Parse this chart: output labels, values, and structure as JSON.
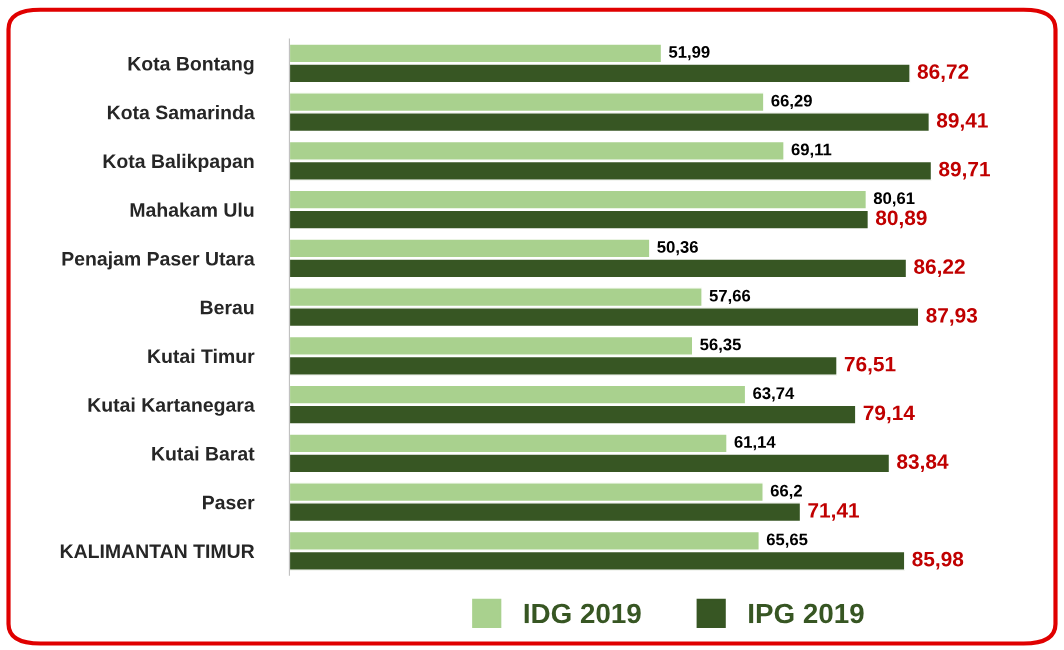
{
  "chart_data": {
    "type": "bar",
    "orientation": "horizontal",
    "categories": [
      "Kota Bontang",
      "Kota Samarinda",
      "Kota Balikpapan",
      "Mahakam Ulu",
      "Penajam Paser Utara",
      "Berau",
      "Kutai Timur",
      "Kutai Kartanegara",
      "Kutai Barat",
      "Paser",
      "KALIMANTAN TIMUR"
    ],
    "series": [
      {
        "name": "IDG 2019",
        "color": "#a9d18e",
        "values": [
          51.99,
          66.29,
          69.11,
          80.61,
          50.36,
          57.66,
          56.35,
          63.74,
          61.14,
          66.2,
          65.65
        ],
        "value_labels": [
          "51,99",
          "66,29",
          "69,11",
          "80,61",
          "50,36",
          "57,66",
          "56,35",
          "63,74",
          "61,14",
          "66,2",
          "65,65"
        ]
      },
      {
        "name": "IPG 2019",
        "color": "#375623",
        "values": [
          86.72,
          89.41,
          89.71,
          80.89,
          86.22,
          87.93,
          76.51,
          79.14,
          83.84,
          71.41,
          85.98
        ],
        "value_labels": [
          "86,72",
          "89,41",
          "89,71",
          "80,89",
          "86,22",
          "87,93",
          "76,51",
          "79,14",
          "83,84",
          "71,41",
          "85,98"
        ]
      }
    ],
    "legend": "bottom",
    "grid": false
  }
}
